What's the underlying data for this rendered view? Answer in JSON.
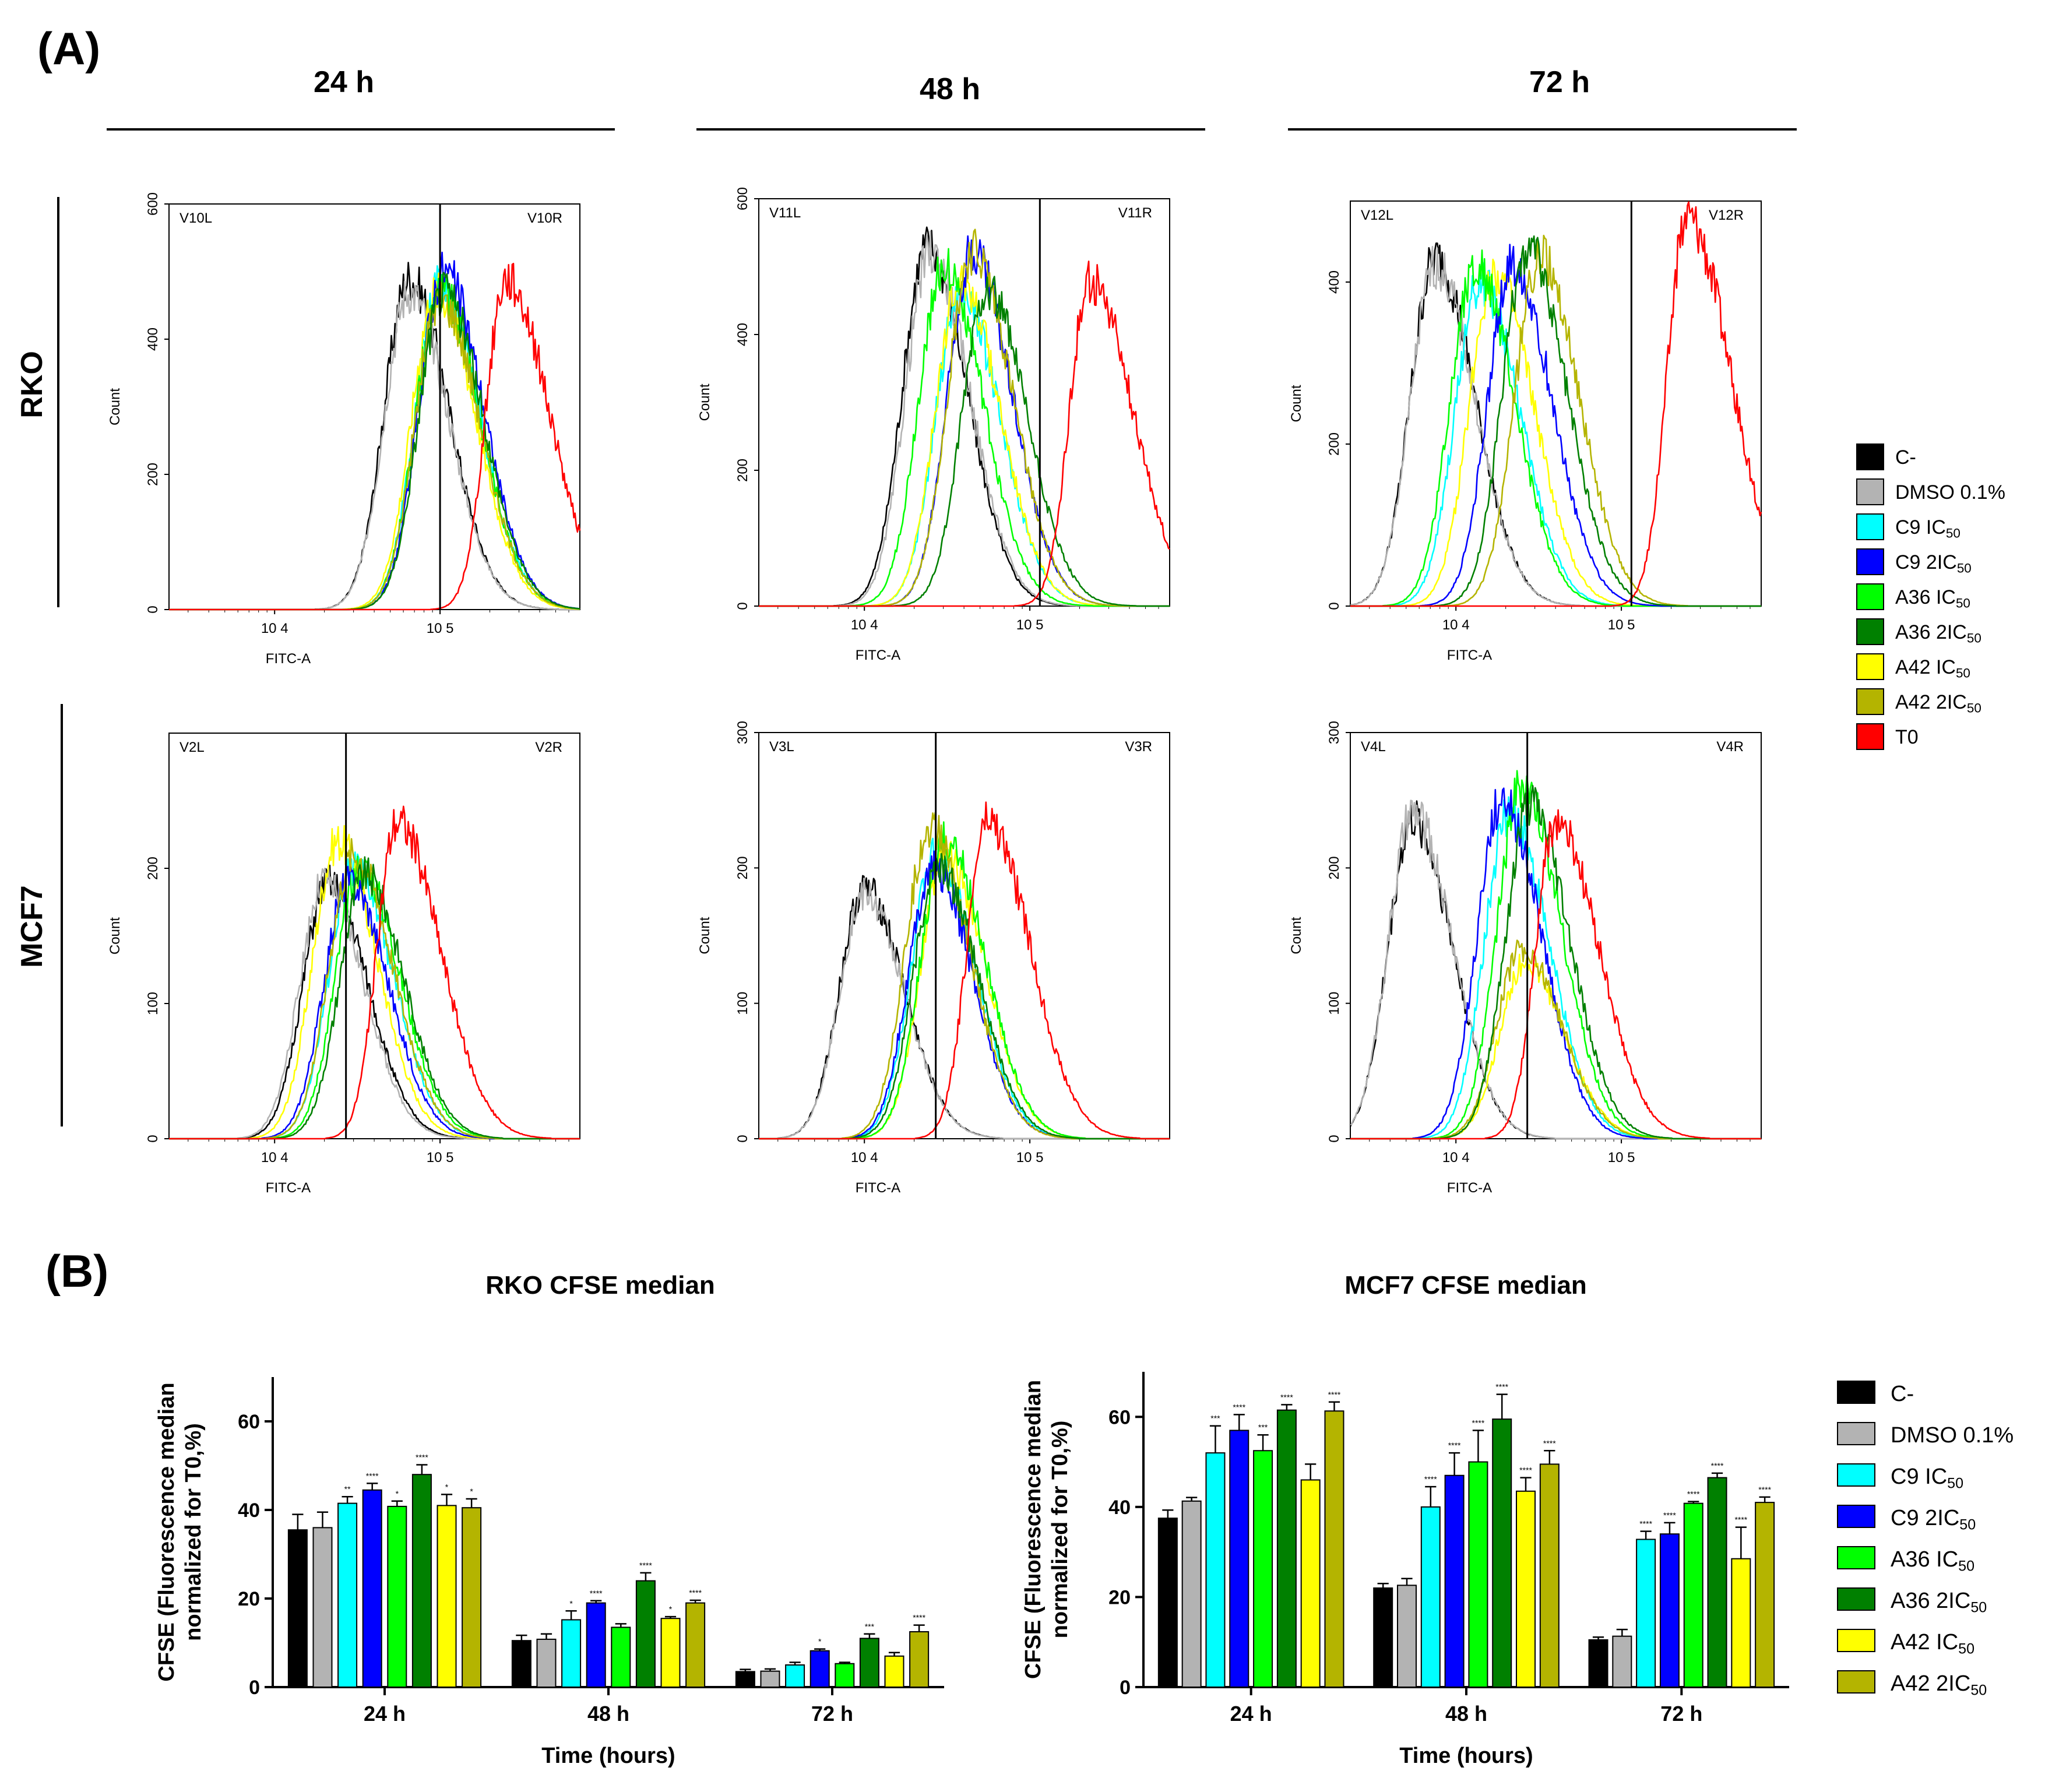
{
  "panel_labels": {
    "a": "(A)",
    "b": "(B)"
  },
  "colors": {
    "C-": "#000000",
    "DMSO 0.1%": "#b3b3b3",
    "C9 IC50": "#00ffff",
    "C9 2IC50": "#0000ff",
    "A36 IC50": "#00ff00",
    "A36 2IC50": "#008000",
    "A42 IC50": "#ffff00",
    "A42 2IC50": "#b4b400",
    "T0": "#ff0000"
  },
  "flow": {
    "columns": [
      "24 h",
      "48 h",
      "72 h"
    ],
    "rows": [
      "RKO",
      "MCF7"
    ],
    "x_axis_label": "FITC-A",
    "y_axis_label": "Count",
    "legend": [
      {
        "main": "C-",
        "sub": "",
        "series": "C-"
      },
      {
        "main": "DMSO 0.1%",
        "sub": "",
        "series": "DMSO 0.1%"
      },
      {
        "main": "C9 IC",
        "sub": "50",
        "series": "C9 IC50"
      },
      {
        "main": "C9 2IC",
        "sub": "50",
        "series": "C9 2IC50"
      },
      {
        "main": "A36 IC",
        "sub": "50",
        "series": "A36 IC50"
      },
      {
        "main": "A36 2IC",
        "sub": "50",
        "series": "A36 2IC50"
      },
      {
        "main": "A42 IC",
        "sub": "50",
        "series": "A42 IC50"
      },
      {
        "main": "A42 2IC",
        "sub": "50",
        "series": "A42 2IC50"
      },
      {
        "main": "T0",
        "sub": "",
        "series": "T0"
      }
    ],
    "plots": [
      {
        "row": "RKO",
        "col": "24 h",
        "ymax": 600,
        "yticks": [
          0,
          200,
          400,
          600
        ],
        "gate_x": 100000,
        "gate_left": "V10L",
        "gate_right": "V10R",
        "xticks": [
          {
            "value": 10000,
            "label": "10 4"
          },
          {
            "value": 100000,
            "label": "10 5"
          }
        ],
        "peaks": {
          "C-": [
            65000,
            490
          ],
          "DMSO 0.1%": [
            65000,
            470
          ],
          "C9 IC50": [
            100000,
            480
          ],
          "C9 2IC50": [
            105000,
            500
          ],
          "A36 IC50": [
            100000,
            470
          ],
          "A36 2IC50": [
            105000,
            470
          ],
          "A42 IC50": [
            95000,
            470
          ],
          "A42 2IC50": [
            100000,
            460
          ],
          "T0": [
            250000,
            490
          ]
        }
      },
      {
        "row": "RKO",
        "col": "48 h",
        "ymax": 600,
        "yticks": [
          0,
          200,
          400,
          600
        ],
        "gate_x": 115000,
        "gate_left": "V11L",
        "gate_right": "V11R",
        "xticks": [
          {
            "value": 10000,
            "label": "10 4"
          },
          {
            "value": 100000,
            "label": "10 5"
          }
        ],
        "peaks": {
          "C-": [
            24000,
            530
          ],
          "DMSO 0.1%": [
            25000,
            520
          ],
          "C9 IC50": [
            38000,
            460
          ],
          "C9 2IC50": [
            45000,
            520
          ],
          "A36 IC50": [
            30000,
            500
          ],
          "A36 2IC50": [
            55000,
            470
          ],
          "A42 IC50": [
            38000,
            480
          ],
          "A42 2IC50": [
            45000,
            520
          ],
          "T0": [
            230000,
            480
          ]
        }
      },
      {
        "row": "RKO",
        "col": "72 h",
        "ymax": 500,
        "yticks": [
          0,
          200,
          400
        ],
        "gate_x": 115000,
        "gate_left": "V12L",
        "gate_right": "V12R",
        "xticks": [
          {
            "value": 10000,
            "label": "10 4"
          },
          {
            "value": 100000,
            "label": "10 5"
          }
        ],
        "peaks": {
          "C-": [
            7500,
            430
          ],
          "DMSO 0.1%": [
            7500,
            420
          ],
          "C9 IC50": [
            14000,
            400
          ],
          "C9 2IC50": [
            22000,
            420
          ],
          "A36 IC50": [
            13000,
            420
          ],
          "A36 2IC50": [
            27000,
            440
          ],
          "A42 IC50": [
            17000,
            410
          ],
          "A42 2IC50": [
            32000,
            430
          ],
          "T0": [
            250000,
            480
          ]
        }
      },
      {
        "row": "MCF7",
        "col": "24 h",
        "ymax": 300,
        "yticks": [
          0,
          100,
          200
        ],
        "gate_x": 27000,
        "gate_left": "V2L",
        "gate_right": "V2R",
        "xticks": [
          {
            "value": 10000,
            "label": "10 4"
          },
          {
            "value": 100000,
            "label": "10 5"
          }
        ],
        "peaks": {
          "C-": [
            21000,
            190
          ],
          "DMSO 0.1%": [
            20000,
            190
          ],
          "C9 IC50": [
            30000,
            200
          ],
          "C9 2IC50": [
            28000,
            190
          ],
          "A36 IC50": [
            33000,
            200
          ],
          "A36 2IC50": [
            35000,
            195
          ],
          "A42 IC50": [
            24000,
            220
          ],
          "A42 2IC50": [
            30000,
            210
          ],
          "T0": [
            55000,
            235
          ]
        }
      },
      {
        "row": "MCF7",
        "col": "48 h",
        "ymax": 300,
        "yticks": [
          0,
          100,
          200,
          300
        ],
        "gate_x": 27000,
        "gate_left": "V3L",
        "gate_right": "V3R",
        "xticks": [
          {
            "value": 10000,
            "label": "10 4"
          },
          {
            "value": 100000,
            "label": "10 5"
          }
        ],
        "peaks": {
          "C-": [
            10000,
            185
          ],
          "DMSO 0.1%": [
            10000,
            180
          ],
          "C9 IC50": [
            27000,
            210
          ],
          "C9 2IC50": [
            26000,
            200
          ],
          "A36 IC50": [
            31000,
            220
          ],
          "A36 2IC50": [
            28000,
            200
          ],
          "A42 IC50": [
            31000,
            210
          ],
          "A42 2IC50": [
            25000,
            230
          ],
          "T0": [
            55000,
            235
          ]
        }
      },
      {
        "row": "MCF7",
        "col": "72 h",
        "ymax": 300,
        "yticks": [
          0,
          100,
          200,
          300
        ],
        "gate_x": 27000,
        "gate_left": "V4L",
        "gate_right": "V4R",
        "xticks": [
          {
            "value": 10000,
            "label": "10 4"
          },
          {
            "value": 100000,
            "label": "10 5"
          }
        ],
        "peaks": {
          "C-": [
            5500,
            235
          ],
          "DMSO 0.1%": [
            5500,
            240
          ],
          "C9 IC50": [
            21000,
            240
          ],
          "C9 2IC50": [
            19000,
            250
          ],
          "A36 IC50": [
            25000,
            260
          ],
          "A36 2IC50": [
            28000,
            245
          ],
          "A42 IC50": [
            26000,
            130
          ],
          "A42 2IC50": [
            25000,
            140
          ],
          "T0": [
            40000,
            235
          ]
        }
      }
    ]
  },
  "chart_data": [
    {
      "type": "bar",
      "title": "RKO CFSE median",
      "xlabel": "Time (hours)",
      "ylabel_line1": "CFSE (Fluorescence median",
      "ylabel_line2": "normalized for T0,%)",
      "categories": [
        "24 h",
        "48 h",
        "72 h"
      ],
      "ylim": [
        0,
        70
      ],
      "yticks": [
        0,
        20,
        40,
        60
      ],
      "series": [
        {
          "name": "C-",
          "values": [
            35.5,
            10.5,
            3.5
          ],
          "errors": [
            3.5,
            1.2,
            0.5
          ],
          "sig": [
            "",
            "",
            ""
          ]
        },
        {
          "name": "DMSO 0.1%",
          "values": [
            36.0,
            10.8,
            3.6
          ],
          "errors": [
            3.5,
            1.2,
            0.5
          ],
          "sig": [
            "",
            "",
            ""
          ]
        },
        {
          "name": "C9 IC50",
          "values": [
            41.5,
            15.2,
            5.0
          ],
          "errors": [
            1.5,
            2.0,
            0.6
          ],
          "sig": [
            "**",
            "*",
            ""
          ]
        },
        {
          "name": "C9 2IC50",
          "values": [
            44.5,
            19.0,
            8.2
          ],
          "errors": [
            1.5,
            0.5,
            0.4
          ],
          "sig": [
            "****",
            "****",
            "*"
          ]
        },
        {
          "name": "A36 IC50",
          "values": [
            40.8,
            13.5,
            5.3
          ],
          "errors": [
            1.2,
            0.8,
            0.3
          ],
          "sig": [
            "*",
            "",
            ""
          ]
        },
        {
          "name": "A36 2IC50",
          "values": [
            48.0,
            24.0,
            11.0
          ],
          "errors": [
            2.2,
            1.8,
            1.0
          ],
          "sig": [
            "****",
            "****",
            "***"
          ]
        },
        {
          "name": "A42 IC50",
          "values": [
            41.0,
            15.5,
            7.0
          ],
          "errors": [
            2.5,
            0.4,
            0.8
          ],
          "sig": [
            "*",
            "*",
            ""
          ]
        },
        {
          "name": "A42 2IC50",
          "values": [
            40.5,
            19.0,
            12.5
          ],
          "errors": [
            2.0,
            0.6,
            1.5
          ],
          "sig": [
            "*",
            "****",
            "****"
          ]
        }
      ]
    },
    {
      "type": "bar",
      "title": "MCF7 CFSE median",
      "xlabel": "Time (hours)",
      "ylabel_line1": "CFSE (Fluorescence median",
      "ylabel_line2": "normalized for T0,%)",
      "categories": [
        "24 h",
        "48 h",
        "72 h"
      ],
      "ylim": [
        0,
        70
      ],
      "yticks": [
        0,
        20,
        40,
        60
      ],
      "series": [
        {
          "name": "C-",
          "values": [
            37.5,
            22.0,
            10.5
          ],
          "errors": [
            1.8,
            1.0,
            0.6
          ],
          "sig": [
            "",
            "",
            ""
          ]
        },
        {
          "name": "DMSO 0.1%",
          "values": [
            41.3,
            22.6,
            11.3
          ],
          "errors": [
            0.8,
            1.5,
            1.5
          ],
          "sig": [
            "",
            "",
            ""
          ]
        },
        {
          "name": "C9 IC50",
          "values": [
            52.0,
            40.0,
            32.8
          ],
          "errors": [
            6.0,
            4.5,
            1.8
          ],
          "sig": [
            "***",
            "****",
            "****"
          ]
        },
        {
          "name": "C9 2IC50",
          "values": [
            57.0,
            47.0,
            34.0
          ],
          "errors": [
            3.5,
            5.0,
            2.5
          ],
          "sig": [
            "****",
            "****",
            "****"
          ]
        },
        {
          "name": "A36 IC50",
          "values": [
            52.5,
            50.0,
            40.8
          ],
          "errors": [
            3.5,
            7.0,
            0.4
          ],
          "sig": [
            "***",
            "****",
            "****"
          ]
        },
        {
          "name": "A36 2IC50",
          "values": [
            61.5,
            59.5,
            46.5
          ],
          "errors": [
            1.2,
            5.5,
            1.0
          ],
          "sig": [
            "****",
            "****",
            "****"
          ]
        },
        {
          "name": "A42 IC50",
          "values": [
            46.0,
            43.5,
            28.5
          ],
          "errors": [
            3.5,
            3.0,
            7.0
          ],
          "sig": [
            "",
            "****",
            "****"
          ]
        },
        {
          "name": "A42 2IC50",
          "values": [
            61.3,
            49.5,
            41.0
          ],
          "errors": [
            2.0,
            3.0,
            1.2
          ],
          "sig": [
            "****",
            "****",
            "****"
          ]
        }
      ]
    }
  ],
  "bar_legend": [
    {
      "main": "C-",
      "sub": "",
      "series": "C-"
    },
    {
      "main": "DMSO 0.1%",
      "sub": "",
      "series": "DMSO 0.1%"
    },
    {
      "main": "C9 IC",
      "sub": "50",
      "series": "C9 IC50"
    },
    {
      "main": "C9 2IC",
      "sub": "50",
      "series": "C9 2IC50"
    },
    {
      "main": "A36 IC",
      "sub": "50",
      "series": "A36 IC50"
    },
    {
      "main": "A36 2IC",
      "sub": "50",
      "series": "A36 2IC50"
    },
    {
      "main": "A42 IC",
      "sub": "50",
      "series": "A42 IC50"
    },
    {
      "main": "A42 2IC",
      "sub": "50",
      "series": "A42 2IC50"
    }
  ]
}
